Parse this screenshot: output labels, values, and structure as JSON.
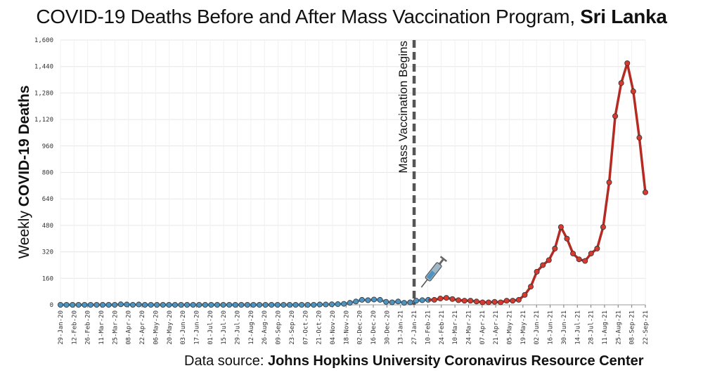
{
  "title": {
    "main": "COVID-19 Deaths Before and After Mass Vaccination Program,",
    "emphasis": "Sri Lanka"
  },
  "source": {
    "prefix": "Data source:",
    "name": "Johns Hopkins University Coronavirus Resource Center"
  },
  "colors": {
    "before_line": "#5a8fb3",
    "before_marker": "#4f93c0",
    "after_line": "#b52a22",
    "after_marker": "#d63a30",
    "grid": "#e6e6e6",
    "vaccination_line": "#555555"
  },
  "annotation": {
    "text": "Mass Vaccination Begins",
    "at_label": "27-Jan-21",
    "icon": "syringe-icon"
  },
  "chart_data": {
    "type": "line",
    "xlabel": "",
    "ylabel_prefix": "Weekly",
    "ylabel_bold": "COVID-19 Deaths",
    "ylim": [
      0,
      1600
    ],
    "yticks": [
      0,
      160,
      320,
      480,
      640,
      800,
      960,
      1120,
      1280,
      1440,
      1600
    ],
    "ytick_labels": [
      "0",
      "160",
      "320",
      "480",
      "640",
      "800",
      "960",
      "1,120",
      "1,280",
      "1,440",
      "1,600"
    ],
    "grid": true,
    "x_tick_labels": [
      "29-Jan-20",
      "12-Feb-20",
      "26-Feb-20",
      "11-Mar-20",
      "25-Mar-20",
      "08-Apr-20",
      "22-Apr-20",
      "06-May-20",
      "20-May-20",
      "03-Jun-20",
      "17-Jun-20",
      "01-Jul-20",
      "15-Jul-20",
      "29-Jul-20",
      "12-Aug-20",
      "26-Aug-20",
      "09-Sep-20",
      "23-Sep-20",
      "07-Oct-20",
      "21-Oct-20",
      "04-Nov-20",
      "18-Nov-20",
      "02-Dec-20",
      "16-Dec-20",
      "30-Dec-20",
      "13-Jan-21",
      "27-Jan-21",
      "10-Feb-21",
      "24-Feb-21",
      "10-Mar-21",
      "24-Mar-21",
      "07-Apr-21",
      "21-Apr-21",
      "05-May-21",
      "19-May-21",
      "02-Jun-21",
      "16-Jun-21",
      "30-Jun-21",
      "14-Jul-21",
      "28-Jul-21",
      "11-Aug-21",
      "25-Aug-21",
      "08-Sep-21",
      "22-Sep-21"
    ],
    "series": [
      {
        "values": [
          0,
          0,
          0,
          0,
          0,
          0,
          0,
          0,
          0,
          0,
          3,
          2,
          0,
          2,
          0,
          0,
          0,
          0,
          0,
          0,
          0,
          0,
          0,
          0,
          0,
          0,
          0,
          0,
          0,
          0,
          0,
          0,
          0,
          0,
          0,
          0,
          0,
          0,
          0,
          0,
          0,
          0,
          0,
          2,
          2,
          3,
          4,
          6,
          12,
          20,
          30,
          28,
          32,
          30,
          18,
          15,
          20,
          12,
          15,
          25,
          28,
          30
        ]
      },
      {
        "values": [
          30,
          38,
          42,
          35,
          28,
          25,
          25,
          20,
          15,
          15,
          18,
          15,
          25,
          25,
          30,
          60,
          110,
          200,
          240,
          270,
          340,
          470,
          400,
          310,
          275,
          265,
          310,
          340,
          470,
          740,
          1140,
          1340,
          1460,
          1290,
          1010,
          680
        ]
      }
    ]
  }
}
